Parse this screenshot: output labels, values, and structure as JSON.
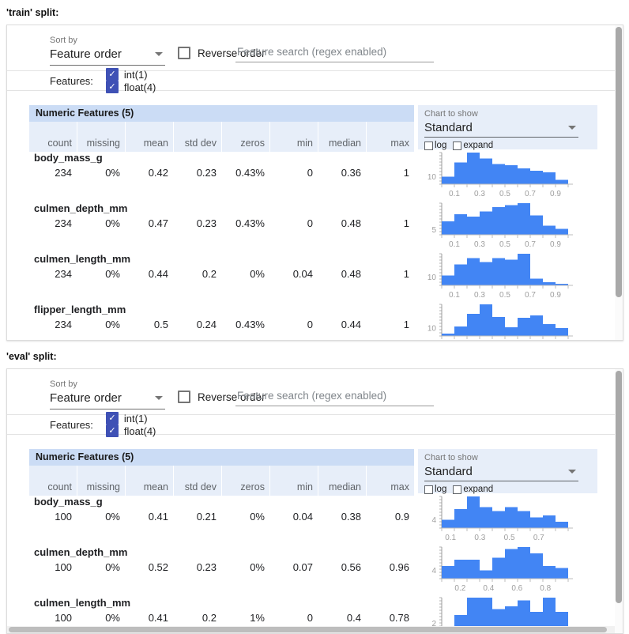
{
  "titles": {
    "train": "'train' split:",
    "eval": "'eval' split:"
  },
  "controls": {
    "sort_by_label": "Sort by",
    "sort_by_value": "Feature order",
    "reverse_order_label": "Reverse order",
    "search_placeholder": "Feature search (regex enabled)",
    "features_label": "Features:",
    "feature_type_toggles": [
      {
        "label": "int(1)",
        "checked": true
      },
      {
        "label": "float(4)",
        "checked": true
      }
    ],
    "chart_to_show_label": "Chart to show",
    "chart_type_value": "Standard",
    "log_label": "log",
    "expand_label": "expand"
  },
  "table": {
    "title": "Numeric Features (5)",
    "columns": [
      "count",
      "missing",
      "mean",
      "std dev",
      "zeros",
      "min",
      "median",
      "max"
    ]
  },
  "splits": {
    "train": {
      "rows": [
        {
          "name": "body_mass_g",
          "values": [
            "234",
            "0%",
            "0.42",
            "0.23",
            "0.43%",
            "0",
            "0.36",
            "1"
          ]
        },
        {
          "name": "culmen_depth_mm",
          "values": [
            "234",
            "0%",
            "0.47",
            "0.23",
            "0.43%",
            "0",
            "0.48",
            "1"
          ]
        },
        {
          "name": "culmen_length_mm",
          "values": [
            "234",
            "0%",
            "0.44",
            "0.2",
            "0%",
            "0.04",
            "0.48",
            "1"
          ]
        },
        {
          "name": "flipper_length_mm",
          "values": [
            "234",
            "0%",
            "0.5",
            "0.24",
            "0.43%",
            "0",
            "0.44",
            "1"
          ]
        }
      ]
    },
    "eval": {
      "rows": [
        {
          "name": "body_mass_g",
          "values": [
            "100",
            "0%",
            "0.41",
            "0.21",
            "0%",
            "0.04",
            "0.38",
            "0.9"
          ]
        },
        {
          "name": "culmen_depth_mm",
          "values": [
            "100",
            "0%",
            "0.52",
            "0.23",
            "0%",
            "0.07",
            "0.56",
            "0.96"
          ]
        },
        {
          "name": "culmen_length_mm",
          "values": [
            "100",
            "0%",
            "0.41",
            "0.2",
            "1%",
            "0",
            "0.4",
            "0.78"
          ]
        }
      ]
    }
  },
  "chart_data": [
    {
      "type": "histogram",
      "split": "train",
      "feature": "body_mass_g",
      "y_tick": 10,
      "domain": [
        0,
        1
      ],
      "x_ticks": [
        0.1,
        0.3,
        0.5,
        0.7,
        0.9
      ],
      "bin_counts": [
        10,
        29,
        42,
        34,
        27,
        25,
        21,
        18,
        16,
        6
      ]
    },
    {
      "type": "histogram",
      "split": "train",
      "feature": "culmen_depth_mm",
      "y_tick": 5,
      "domain": [
        0,
        1
      ],
      "x_ticks": [
        0.1,
        0.3,
        0.5,
        0.7,
        0.9
      ],
      "bin_counts": [
        13,
        20,
        18,
        23,
        27,
        29,
        31,
        19,
        9,
        6
      ]
    },
    {
      "type": "histogram",
      "split": "train",
      "feature": "culmen_length_mm",
      "y_tick": 10,
      "domain": [
        0,
        1
      ],
      "x_ticks": [
        0.1,
        0.3,
        0.5,
        0.7,
        0.9
      ],
      "bin_counts": [
        12,
        25,
        33,
        28,
        33,
        31,
        38,
        8,
        4,
        2
      ]
    },
    {
      "type": "histogram",
      "split": "train",
      "feature": "flipper_length_mm",
      "y_tick": 10,
      "domain": [
        0,
        1
      ],
      "x_ticks": [
        0.1,
        0.3,
        0.5,
        0.7,
        0.9
      ],
      "bin_counts": [
        3,
        12,
        28,
        40,
        24,
        11,
        23,
        26,
        15,
        10
      ]
    },
    {
      "type": "histogram",
      "split": "eval",
      "feature": "body_mass_g",
      "y_tick": 4,
      "domain": [
        0.04,
        0.9
      ],
      "x_ticks": [
        0.1,
        0.3,
        0.5,
        0.7
      ],
      "bin_counts": [
        4,
        9,
        15,
        10,
        8,
        10,
        8,
        5,
        6,
        3
      ]
    },
    {
      "type": "histogram",
      "split": "eval",
      "feature": "culmen_depth_mm",
      "y_tick": 4,
      "domain": [
        0.07,
        0.96
      ],
      "x_ticks": [
        0.2,
        0.4,
        0.6,
        0.8
      ],
      "bin_counts": [
        6,
        9,
        9,
        4,
        10,
        14,
        15,
        12,
        6,
        5
      ]
    },
    {
      "type": "histogram",
      "split": "eval",
      "feature": "culmen_length_mm",
      "y_tick": 2,
      "domain": [
        0,
        0.78
      ],
      "x_ticks": [
        0.2,
        0.4,
        0.6
      ],
      "bin_counts": [
        1,
        5,
        11,
        11,
        7,
        8,
        10,
        6,
        11,
        6
      ]
    }
  ],
  "colors": {
    "bar_blue": "#4285f4",
    "checkbox_blue": "#3f51b5",
    "table_title_bg": "#cbdcf5",
    "header_cell_bg": "#e7eef9",
    "chart_panel_bg": "#e7eef9",
    "axis_label_grey": "#9e9e9e"
  }
}
